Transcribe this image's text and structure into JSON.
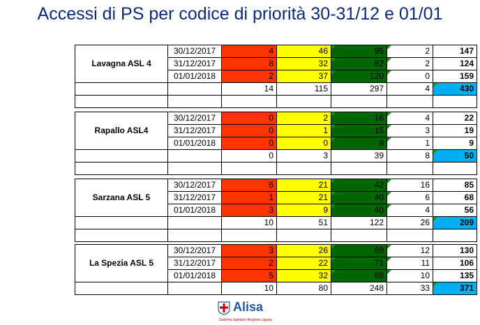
{
  "title": "Accessi di PS per codice di priorità 30-31/12 e 01/01",
  "colors": {
    "red": "#ff3300",
    "yellow": "#ffff00",
    "green": "#006600",
    "blue": "#00b0f0",
    "title": "#0a2a7a"
  },
  "groups": [
    {
      "hospital": "Lavagna ASL 4",
      "rows": [
        {
          "date": "30/12/2017",
          "red": "4",
          "yellow": "46",
          "green": "95",
          "white": "2",
          "total": "147"
        },
        {
          "date": "31/12/2017",
          "red": "8",
          "yellow": "32",
          "green": "82",
          "white": "2",
          "total": "124"
        },
        {
          "date": "01/01/2018",
          "red": "2",
          "yellow": "37",
          "green": "120",
          "white": "0",
          "total": "159"
        }
      ],
      "sum": {
        "red": "14",
        "yellow": "115",
        "green": "297",
        "white": "4",
        "total": "430"
      }
    },
    {
      "hospital": "Rapallo ASL4",
      "rows": [
        {
          "date": "30/12/2017",
          "red": "0",
          "yellow": "2",
          "green": "16",
          "white": "4",
          "total": "22"
        },
        {
          "date": "31/12/2017",
          "red": "0",
          "yellow": "1",
          "green": "15",
          "white": "3",
          "total": "19"
        },
        {
          "date": "01/01/2018",
          "red": "0",
          "yellow": "0",
          "green": "8",
          "white": "1",
          "total": "9"
        }
      ],
      "sum": {
        "red": "0",
        "yellow": "3",
        "green": "39",
        "white": "8",
        "total": "50"
      }
    },
    {
      "hospital": "Sarzana ASL 5",
      "rows": [
        {
          "date": "30/12/2017",
          "red": "6",
          "yellow": "21",
          "green": "42",
          "white": "16",
          "total": "85"
        },
        {
          "date": "31/12/2017",
          "red": "1",
          "yellow": "21",
          "green": "40",
          "white": "6",
          "total": "68"
        },
        {
          "date": "01/01/2018",
          "red": "3",
          "yellow": "9",
          "green": "40",
          "white": "4",
          "total": "56"
        }
      ],
      "sum": {
        "red": "10",
        "yellow": "51",
        "green": "122",
        "white": "26",
        "total": "209"
      }
    },
    {
      "hospital": "La Spezia ASL 5",
      "rows": [
        {
          "date": "30/12/2017",
          "red": "3",
          "yellow": "26",
          "green": "89",
          "white": "12",
          "total": "130"
        },
        {
          "date": "31/12/2017",
          "red": "2",
          "yellow": "22",
          "green": "71",
          "white": "11",
          "total": "106"
        },
        {
          "date": "01/01/2018",
          "red": "5",
          "yellow": "32",
          "green": "88",
          "white": "10",
          "total": "135"
        }
      ],
      "sum": {
        "red": "10",
        "yellow": "80",
        "green": "248",
        "white": "33",
        "total": "371"
      }
    }
  ],
  "logo": {
    "name": "Alisa",
    "subtitle": "Sistema Sanitario Regione Liguria",
    "icon": "region-crest-icon"
  }
}
